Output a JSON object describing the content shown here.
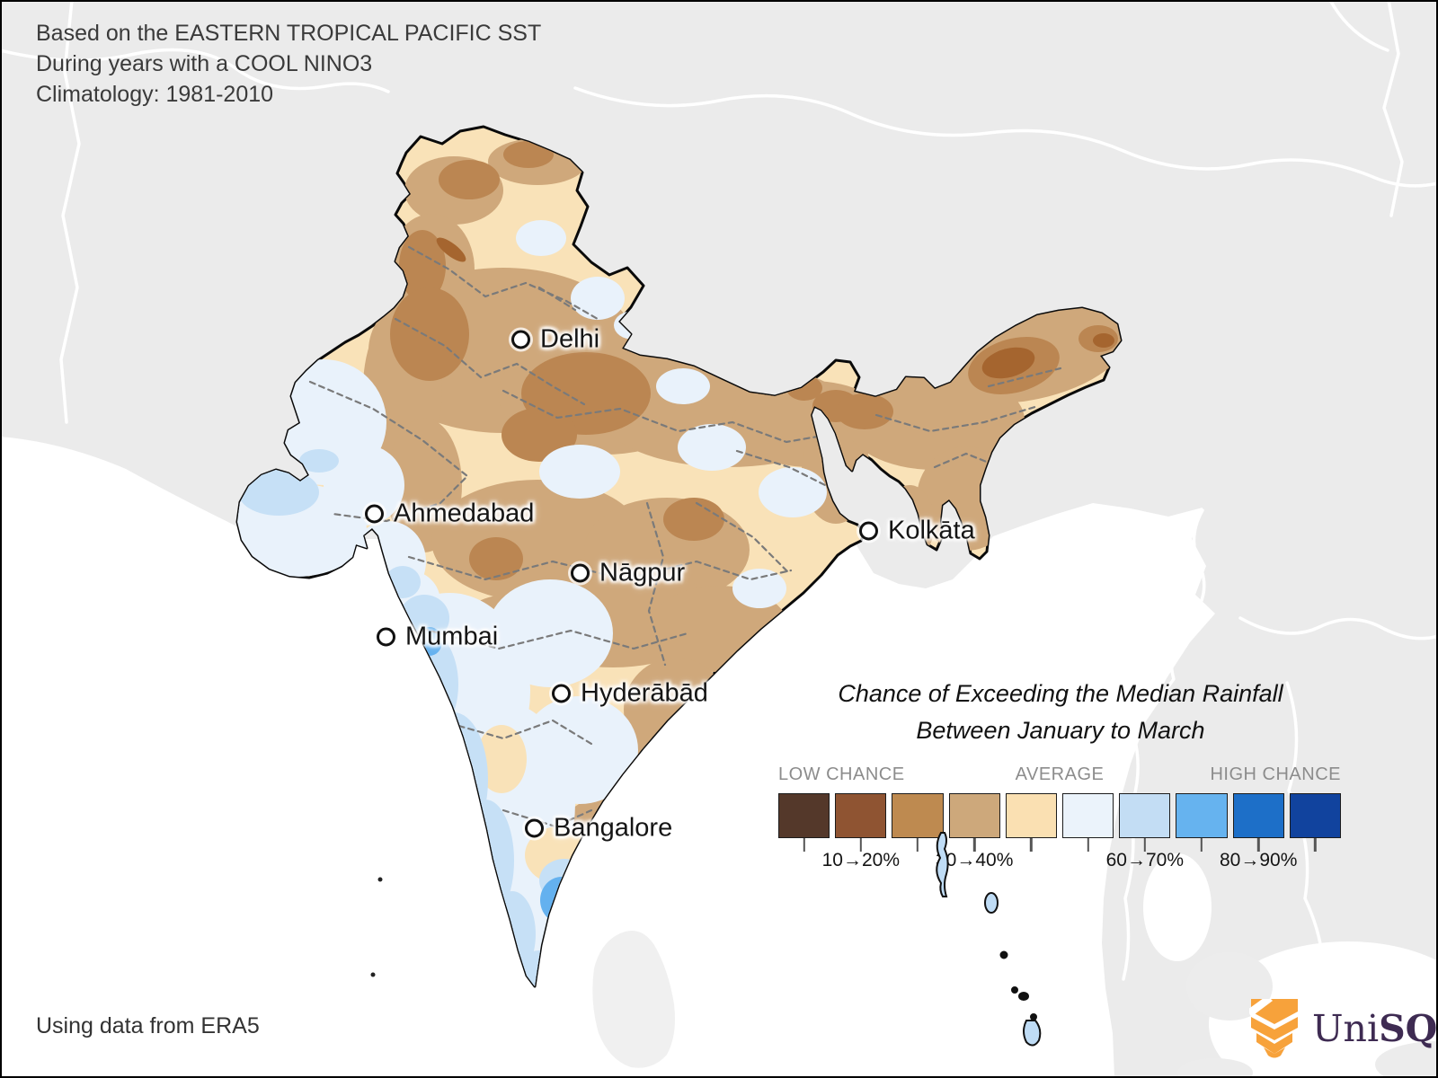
{
  "header": {
    "line1": "Based on the EASTERN TROPICAL PACIFIC SST",
    "line2": "During years with a COOL NINO3",
    "line3": "Climatology: 1981-2010"
  },
  "cities": [
    {
      "label": "Delhi"
    },
    {
      "label": "Ahmedabad"
    },
    {
      "label": "Kolkāta"
    },
    {
      "label": "Nāgpur"
    },
    {
      "label": "Mumbai"
    },
    {
      "label": "Hyderābād"
    },
    {
      "label": "Bangalore"
    }
  ],
  "legend": {
    "title_line1": "Chance of Exceeding the Median Rainfall",
    "title_line2": "Between January to March",
    "low_label": "LOW CHANCE",
    "average_label": "AVERAGE",
    "high_label": "HIGH CHANCE",
    "colors": [
      "#54382A",
      "#8F5432",
      "#BE8A50",
      "#CDA87B",
      "#FAE0B2",
      "#EBF3FB",
      "#C3DDF4",
      "#66B3EF",
      "#1D6FC8",
      "#11439E"
    ],
    "tick_labels": [
      "10→20%",
      "30→40%",
      "60→70%",
      "80→90%"
    ],
    "tick_box_indices": [
      1,
      3,
      6,
      8
    ]
  },
  "map_colors": {
    "land_other": "#EBEBEB",
    "ocean": "#FFFFFF",
    "india_base_cream": "#F9E2B8",
    "tan": "#CFA87B",
    "brown": "#BB8652",
    "dark_brown": "#A5652F",
    "pale_blue": "#E9F2FB",
    "light_blue": "#C6E0F6",
    "medium_blue": "#64B1EF",
    "deep_blue_patch": "#3E90E4"
  },
  "footer": {
    "credit": "Using data from ERA5"
  },
  "logo": {
    "text_regular": "Uni",
    "text_bold": "SQ",
    "icon_color": "#F7A23B",
    "text_color": "#3E2B52"
  }
}
